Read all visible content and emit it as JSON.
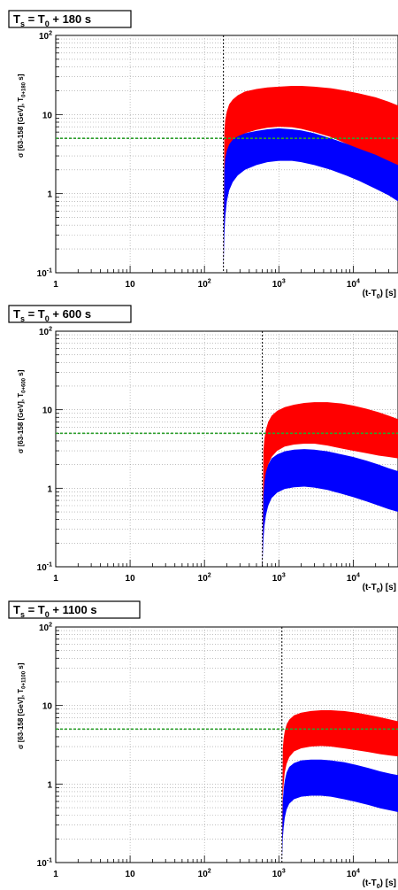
{
  "chart_data": [
    {
      "type": "area",
      "title": "T_s = T_0 + 180 s",
      "xlabel": "(t-T_0) [s]",
      "ylabel": "σ [63-158 [GeV], T_0+180 s]",
      "x_scale": "log",
      "y_scale": "log",
      "xlim": [
        1,
        40000
      ],
      "ylim": [
        0.1,
        100
      ],
      "grid": true,
      "x_tick_labels": [
        "1",
        "10",
        "10^2",
        "10^3",
        "10^4"
      ],
      "y_tick_labels": [
        "10^-1",
        "1",
        "10",
        "10^2"
      ],
      "reference_line": {
        "y": 5,
        "color": "#2ea02e",
        "style": "dashed"
      },
      "vertical_marker": {
        "x": 180,
        "style": "dashed"
      },
      "x": [
        180,
        185,
        190,
        200,
        215,
        240,
        280,
        350,
        500,
        700,
        1000,
        1500,
        2000,
        3000,
        5000,
        8000,
        12000,
        20000,
        30000,
        40000
      ],
      "series": [
        {
          "color": "#ff0000",
          "upper": [
            0.1,
            6.0,
            8.5,
            11.0,
            13.5,
            15.5,
            17.5,
            19.5,
            21.0,
            22.0,
            22.5,
            23.0,
            23.0,
            22.5,
            21.5,
            20.0,
            18.5,
            16.5,
            14.5,
            13.0
          ],
          "lower": [
            0.1,
            1.2,
            1.8,
            2.6,
            3.4,
            4.2,
            5.0,
            5.8,
            6.4,
            6.8,
            7.0,
            6.9,
            6.6,
            6.0,
            5.2,
            4.3,
            3.6,
            2.9,
            2.4,
            2.1
          ]
        },
        {
          "color": "#0000ff",
          "upper": [
            0.1,
            2.0,
            2.8,
            3.5,
            4.2,
            4.8,
            5.3,
            5.8,
            6.2,
            6.5,
            6.7,
            6.5,
            6.3,
            5.8,
            5.0,
            4.3,
            3.7,
            3.1,
            2.6,
            2.3
          ],
          "lower": [
            0.1,
            0.3,
            0.5,
            0.8,
            1.1,
            1.4,
            1.7,
            2.0,
            2.3,
            2.5,
            2.6,
            2.6,
            2.5,
            2.3,
            2.0,
            1.7,
            1.45,
            1.15,
            0.95,
            0.8
          ]
        }
      ]
    },
    {
      "type": "area",
      "title": "T_s = T_0 + 600 s",
      "xlabel": "(t-T_0) [s]",
      "ylabel": "σ [63-158 [GeV], T_0+600 s]",
      "x_scale": "log",
      "y_scale": "log",
      "xlim": [
        1,
        40000
      ],
      "ylim": [
        0.1,
        100
      ],
      "grid": true,
      "x_tick_labels": [
        "1",
        "10",
        "10^2",
        "10^3",
        "10^4"
      ],
      "y_tick_labels": [
        "10^-1",
        "1",
        "10",
        "10^2"
      ],
      "reference_line": {
        "y": 5,
        "color": "#2ea02e",
        "style": "dashed"
      },
      "vertical_marker": {
        "x": 600,
        "style": "dashed"
      },
      "x": [
        600,
        620,
        640,
        670,
        720,
        800,
        950,
        1200,
        1600,
        2200,
        3000,
        4500,
        7000,
        10000,
        15000,
        22000,
        30000,
        40000
      ],
      "series": [
        {
          "color": "#ff0000",
          "upper": [
            0.1,
            3.0,
            4.3,
            5.6,
            7.0,
            8.4,
            9.7,
            10.8,
            11.6,
            12.2,
            12.5,
            12.5,
            12.0,
            11.3,
            10.3,
            9.3,
            8.4,
            7.6
          ],
          "lower": [
            0.1,
            0.7,
            1.1,
            1.5,
            2.0,
            2.5,
            3.0,
            3.4,
            3.6,
            3.7,
            3.7,
            3.5,
            3.2,
            3.0,
            2.8,
            2.6,
            2.5,
            2.4
          ]
        },
        {
          "color": "#0000ff",
          "upper": [
            0.1,
            0.8,
            1.2,
            1.6,
            2.0,
            2.4,
            2.7,
            2.95,
            3.1,
            3.15,
            3.1,
            2.95,
            2.7,
            2.5,
            2.25,
            2.0,
            1.8,
            1.65
          ],
          "lower": [
            0.1,
            0.22,
            0.33,
            0.45,
            0.6,
            0.75,
            0.88,
            0.98,
            1.03,
            1.05,
            1.02,
            0.95,
            0.85,
            0.77,
            0.68,
            0.6,
            0.54,
            0.5
          ]
        }
      ]
    },
    {
      "type": "area",
      "title": "T_s = T_0 + 1100 s",
      "xlabel": "(t-T_0) [s]",
      "ylabel": "σ [63-158 [GeV], T_0+1100 s]",
      "x_scale": "log",
      "y_scale": "log",
      "xlim": [
        1,
        40000
      ],
      "ylim": [
        0.1,
        100
      ],
      "grid": true,
      "x_tick_labels": [
        "1",
        "10",
        "10^2",
        "10^3",
        "10^4"
      ],
      "y_tick_labels": [
        "10^-1",
        "1",
        "10",
        "10^2"
      ],
      "reference_line": {
        "y": 5,
        "color": "#2ea02e",
        "style": "dashed"
      },
      "vertical_marker": {
        "x": 1100,
        "style": "dashed"
      },
      "x": [
        1100,
        1130,
        1160,
        1200,
        1270,
        1380,
        1600,
        2000,
        2700,
        3700,
        5000,
        7500,
        11000,
        16000,
        23000,
        32000,
        40000
      ],
      "series": [
        {
          "color": "#ff0000",
          "upper": [
            0.1,
            2.8,
            3.8,
            4.7,
            5.7,
            6.6,
            7.5,
            8.1,
            8.5,
            8.7,
            8.7,
            8.5,
            8.1,
            7.6,
            7.1,
            6.6,
            6.3
          ],
          "lower": [
            0.1,
            0.7,
            1.0,
            1.4,
            1.8,
            2.2,
            2.6,
            2.85,
            3.0,
            3.05,
            3.0,
            2.85,
            2.7,
            2.55,
            2.4,
            2.3,
            2.25
          ]
        },
        {
          "color": "#0000ff",
          "upper": [
            0.1,
            0.6,
            0.85,
            1.1,
            1.4,
            1.65,
            1.85,
            2.0,
            2.05,
            2.05,
            2.0,
            1.9,
            1.75,
            1.6,
            1.45,
            1.35,
            1.3
          ],
          "lower": [
            0.1,
            0.2,
            0.28,
            0.37,
            0.47,
            0.56,
            0.64,
            0.69,
            0.71,
            0.71,
            0.69,
            0.64,
            0.59,
            0.54,
            0.49,
            0.46,
            0.44
          ]
        }
      ]
    }
  ]
}
